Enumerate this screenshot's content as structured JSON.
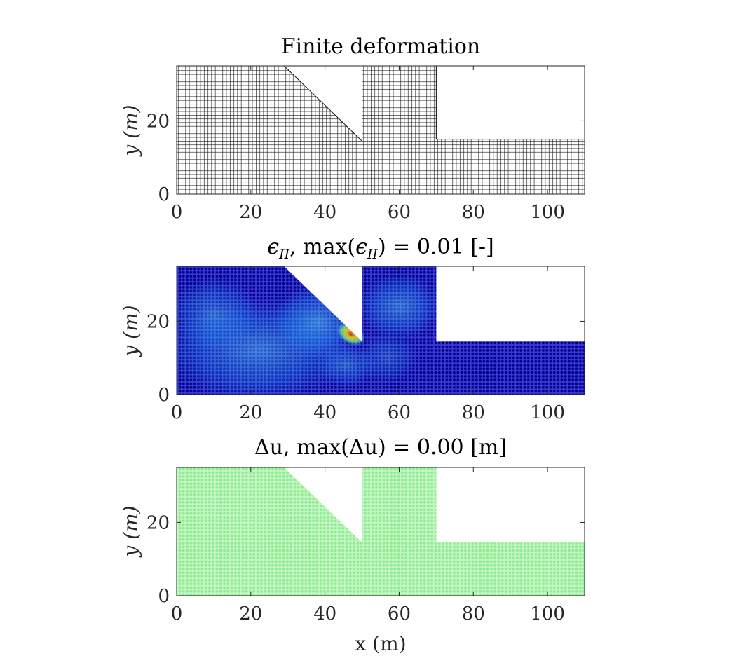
{
  "figure": {
    "panels": [
      {
        "title": "Finite deformation",
        "ylabel": "y (m)"
      },
      {
        "title": "ϵ_II, max(ϵ_II) = 0.01 [-]",
        "title_main": "ϵ",
        "title_sub": "II",
        "title_mid": ", max(",
        "title_main2": "ϵ",
        "title_sub2": "II",
        "title_end": ") = 0.01 [-]",
        "ylabel": "y (m)"
      },
      {
        "title": "Δu, max(Δu) = 0.00 [m]",
        "ylabel": "y (m)",
        "xlabel": "x (m)"
      }
    ]
  },
  "chart_data": [
    {
      "type": "scatter",
      "title": "Finite deformation",
      "xlabel": "",
      "ylabel": "y (m)",
      "xlim": [
        0,
        110
      ],
      "ylim": [
        0,
        35
      ],
      "xticks": [
        0,
        20,
        40,
        60,
        80,
        100
      ],
      "yticks": [
        0,
        20
      ],
      "marker_color": "#000000",
      "geometry": {
        "outline": [
          [
            0,
            0
          ],
          [
            110,
            0
          ],
          [
            110,
            15
          ],
          [
            70,
            15
          ],
          [
            70,
            35
          ],
          [
            50,
            35
          ],
          [
            50,
            14.5
          ],
          [
            29,
            35
          ],
          [
            0,
            35
          ]
        ],
        "mesh_spacing": 1
      }
    },
    {
      "type": "scatter",
      "title": "ϵ_II, max(ϵ_II) = 0.01 [-]",
      "xlabel": "",
      "ylabel": "y (m)",
      "xlim": [
        0,
        110
      ],
      "ylim": [
        0,
        35
      ],
      "xticks": [
        0,
        20,
        40,
        60,
        80,
        100
      ],
      "yticks": [
        0,
        20
      ],
      "colormap": "jet",
      "max_value": 0.01,
      "hotspot": {
        "x": 47,
        "y": 16.5
      },
      "geometry": {
        "outline": [
          [
            0,
            0
          ],
          [
            110,
            0
          ],
          [
            110,
            14.5
          ],
          [
            70,
            14.5
          ],
          [
            70,
            35
          ],
          [
            50,
            35
          ],
          [
            50,
            14.5
          ],
          [
            29,
            35
          ],
          [
            0,
            35
          ]
        ],
        "mesh_spacing": 1
      }
    },
    {
      "type": "scatter",
      "title": "Δu, max(Δu) = 0.00 [m]",
      "xlabel": "x (m)",
      "ylabel": "y (m)",
      "xlim": [
        0,
        110
      ],
      "ylim": [
        0,
        35
      ],
      "xticks": [
        0,
        20,
        40,
        60,
        80,
        100
      ],
      "yticks": [
        0,
        20
      ],
      "marker_color": "#9ef09e",
      "max_value": 0.0,
      "geometry": {
        "outline": [
          [
            0,
            0
          ],
          [
            110,
            0
          ],
          [
            110,
            14.5
          ],
          [
            70,
            14.5
          ],
          [
            70,
            35
          ],
          [
            50,
            35
          ],
          [
            50,
            14.5
          ],
          [
            29,
            35
          ],
          [
            0,
            35
          ]
        ],
        "mesh_spacing": 1
      }
    }
  ]
}
